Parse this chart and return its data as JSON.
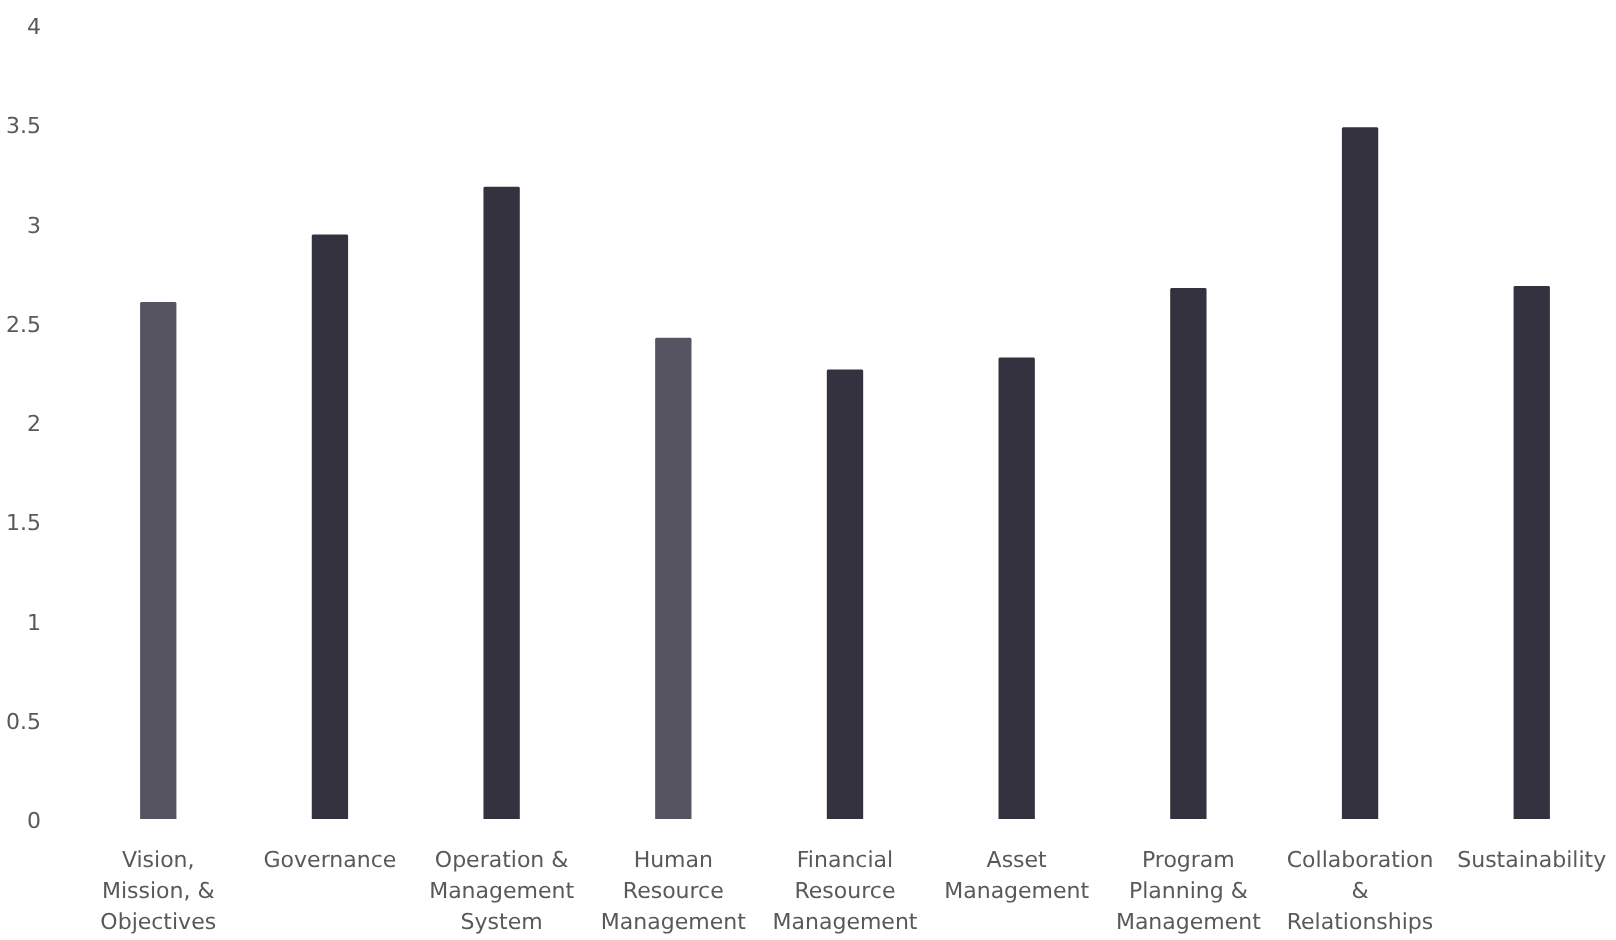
{
  "chart_data": {
    "type": "bar",
    "categories": [
      "Vision, Mission, & Objectives",
      "Governance",
      "Operation & Management System",
      "Human Resource Management",
      "Financial Resource Management",
      "Asset Management",
      "Program Planning & Management",
      "Collaboration & Relationships",
      "Sustainability"
    ],
    "values": [
      2.6,
      2.94,
      3.18,
      2.42,
      2.26,
      2.32,
      2.67,
      3.48,
      2.68
    ],
    "colors": [
      "#575462",
      "#33323e",
      "#33323e",
      "#575462",
      "#33323e",
      "#33323e",
      "#33323e",
      "#33323e",
      "#33323e"
    ],
    "ylim": [
      0,
      4
    ],
    "yticks": [
      0,
      0.5,
      1,
      1.5,
      2,
      2.5,
      3,
      3.5,
      4
    ],
    "grid": false
  }
}
